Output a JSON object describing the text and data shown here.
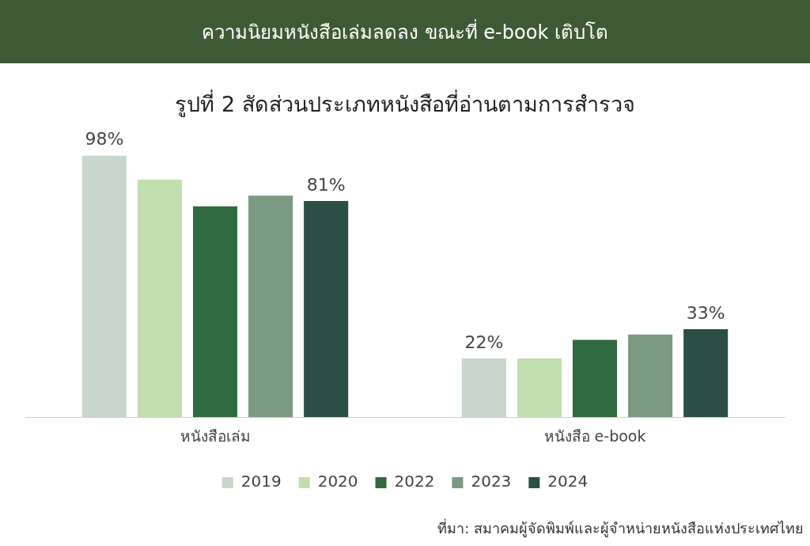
{
  "chart_data": {
    "type": "bar",
    "title": "ความนิยมหนังสือเล่มลดลง ขณะที่ e-book เติบโต",
    "subtitle": "รูปที่ 2 สัดส่วนประเภทหนังสือที่อ่านตามการสำรวจ",
    "categories": [
      "หนังสือเล่ม",
      "หนังสือ e-book"
    ],
    "series": [
      {
        "name": "2019",
        "color": "#c9d6cc",
        "values": [
          98,
          22
        ],
        "value_labels": [
          "98%",
          "22%"
        ]
      },
      {
        "name": "2020",
        "color": "#c2dfb0",
        "values": [
          89,
          22
        ],
        "value_labels": [
          null,
          null
        ]
      },
      {
        "name": "2022",
        "color": "#2f6b3e",
        "values": [
          79,
          29
        ],
        "value_labels": [
          null,
          null
        ]
      },
      {
        "name": "2023",
        "color": "#7a9a82",
        "values": [
          83,
          31
        ],
        "value_labels": [
          null,
          null
        ]
      },
      {
        "name": "2024",
        "color": "#2a4f47",
        "values": [
          81,
          33
        ],
        "value_labels": [
          "81%",
          "33%"
        ]
      }
    ],
    "legend": "bottom",
    "grid": false,
    "tick_labels": "x",
    "annotations": [
      "ที่มา:  สมาคมผู้จัดพิมพ์และผู้จำหน่ายหนังสือแห่งประเทศไทย"
    ]
  }
}
